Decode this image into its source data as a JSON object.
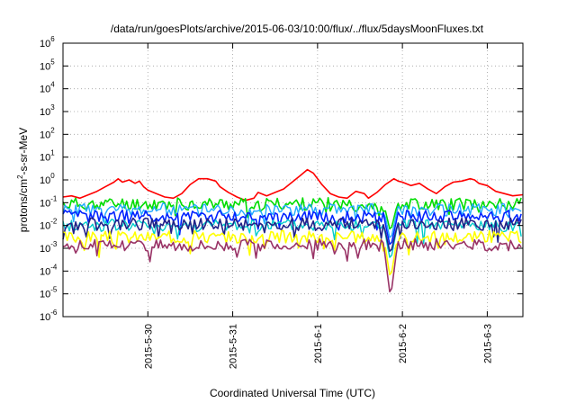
{
  "chart_data": {
    "type": "line",
    "title": "/data/run/goesPlots/archive/2015-06-03/10:00/flux/../flux/5daysMoonFluxes.txt",
    "xlabel": "Coordinated Universal Time (UTC)",
    "ylabel_parts": [
      "protons/cm",
      "2",
      "-s-sr-MeV"
    ],
    "x_axis": {
      "unit": "day offset from 2015-05-29 00:00 UTC",
      "xlim": [
        0.0,
        5.42
      ],
      "ticks": [
        {
          "x": 1,
          "label": "2015-5-30"
        },
        {
          "x": 2,
          "label": "2015-5-31"
        },
        {
          "x": 3,
          "label": "2015-6-1"
        },
        {
          "x": 4,
          "label": "2015-6-2"
        },
        {
          "x": 5,
          "label": "2015-6-3"
        }
      ]
    },
    "y_axis": {
      "scale": "log",
      "ylim": [
        1e-06,
        1000000.0
      ],
      "ticks": [
        {
          "exp": -6,
          "base": "10",
          "sup": "-6"
        },
        {
          "exp": -5,
          "base": "10",
          "sup": "-5"
        },
        {
          "exp": -4,
          "base": "10",
          "sup": "-4"
        },
        {
          "exp": -3,
          "base": "10",
          "sup": "-3"
        },
        {
          "exp": -2,
          "base": "10",
          "sup": "-2"
        },
        {
          "exp": -1,
          "base": "10",
          "sup": "-1"
        },
        {
          "exp": 0,
          "base": "10",
          "sup": "0"
        },
        {
          "exp": 1,
          "base": "10",
          "sup": "1"
        },
        {
          "exp": 2,
          "base": "10",
          "sup": "2"
        },
        {
          "exp": 3,
          "base": "10",
          "sup": "3"
        },
        {
          "exp": 4,
          "base": "10",
          "sup": "4"
        },
        {
          "exp": 5,
          "base": "10",
          "sup": "5"
        },
        {
          "exp": 6,
          "base": "10",
          "sup": "6"
        }
      ]
    },
    "grid": true,
    "series": [
      {
        "color": "#ff0000",
        "width": 1.6,
        "points": [
          [
            0.0,
            -0.75
          ],
          [
            0.1,
            -0.7
          ],
          [
            0.2,
            -0.8
          ],
          [
            0.3,
            -0.65
          ],
          [
            0.4,
            -0.5
          ],
          [
            0.5,
            -0.3
          ],
          [
            0.6,
            -0.1
          ],
          [
            0.65,
            0.05
          ],
          [
            0.7,
            -0.1
          ],
          [
            0.78,
            0.0
          ],
          [
            0.85,
            -0.15
          ],
          [
            0.9,
            -0.05
          ],
          [
            0.95,
            -0.3
          ],
          [
            1.0,
            -0.45
          ],
          [
            1.1,
            -0.6
          ],
          [
            1.2,
            -0.75
          ],
          [
            1.3,
            -0.8
          ],
          [
            1.4,
            -0.6
          ],
          [
            1.5,
            -0.2
          ],
          [
            1.6,
            0.05
          ],
          [
            1.7,
            0.05
          ],
          [
            1.8,
            -0.05
          ],
          [
            1.85,
            -0.3
          ],
          [
            1.95,
            -0.55
          ],
          [
            2.05,
            -0.75
          ],
          [
            2.15,
            -0.9
          ],
          [
            2.25,
            -0.8
          ],
          [
            2.3,
            -0.55
          ],
          [
            2.4,
            -0.7
          ],
          [
            2.5,
            -0.55
          ],
          [
            2.6,
            -0.4
          ],
          [
            2.7,
            -0.1
          ],
          [
            2.8,
            0.2
          ],
          [
            2.88,
            0.45
          ],
          [
            2.95,
            0.3
          ],
          [
            3.0,
            0.05
          ],
          [
            3.05,
            -0.2
          ],
          [
            3.15,
            -0.6
          ],
          [
            3.25,
            -0.75
          ],
          [
            3.35,
            -0.8
          ],
          [
            3.45,
            -0.5
          ],
          [
            3.55,
            -0.6
          ],
          [
            3.6,
            -0.8
          ],
          [
            3.7,
            -0.55
          ],
          [
            3.8,
            -0.2
          ],
          [
            3.9,
            0.05
          ],
          [
            3.95,
            -0.05
          ],
          [
            4.0,
            -0.1
          ],
          [
            4.1,
            -0.25
          ],
          [
            4.2,
            -0.15
          ],
          [
            4.3,
            -0.4
          ],
          [
            4.4,
            -0.6
          ],
          [
            4.5,
            -0.3
          ],
          [
            4.6,
            -0.1
          ],
          [
            4.7,
            -0.05
          ],
          [
            4.8,
            0.05
          ],
          [
            4.85,
            0.0
          ],
          [
            4.9,
            -0.15
          ],
          [
            5.0,
            -0.25
          ],
          [
            5.1,
            -0.5
          ],
          [
            5.2,
            -0.6
          ],
          [
            5.3,
            -0.7
          ],
          [
            5.42,
            -0.65
          ]
        ]
      },
      {
        "color": "#00dd00",
        "width": 1.6,
        "base": -1.05,
        "seed": 11,
        "dipMin": -2.3
      },
      {
        "color": "#22aaff",
        "width": 1.4,
        "base": -1.3,
        "seed": 23,
        "dipMin": -2.7
      },
      {
        "color": "#0022ff",
        "width": 1.6,
        "base": -1.6,
        "seed": 37,
        "dipMin": -3.0
      },
      {
        "color": "#00cccc",
        "width": 1.4,
        "base": -2.0,
        "seed": 41,
        "dipMin": -3.6
      },
      {
        "color": "#222288",
        "width": 1.6,
        "base": -1.95,
        "seed": 53,
        "dipMin": -3.3
      },
      {
        "color": "#ffff00",
        "width": 1.6,
        "base": -2.5,
        "seed": 67,
        "dipMin": -4.4
      },
      {
        "color": "#993366",
        "width": 1.6,
        "base": -2.85,
        "seed": 79,
        "dipMin": -5.2
      }
    ]
  }
}
